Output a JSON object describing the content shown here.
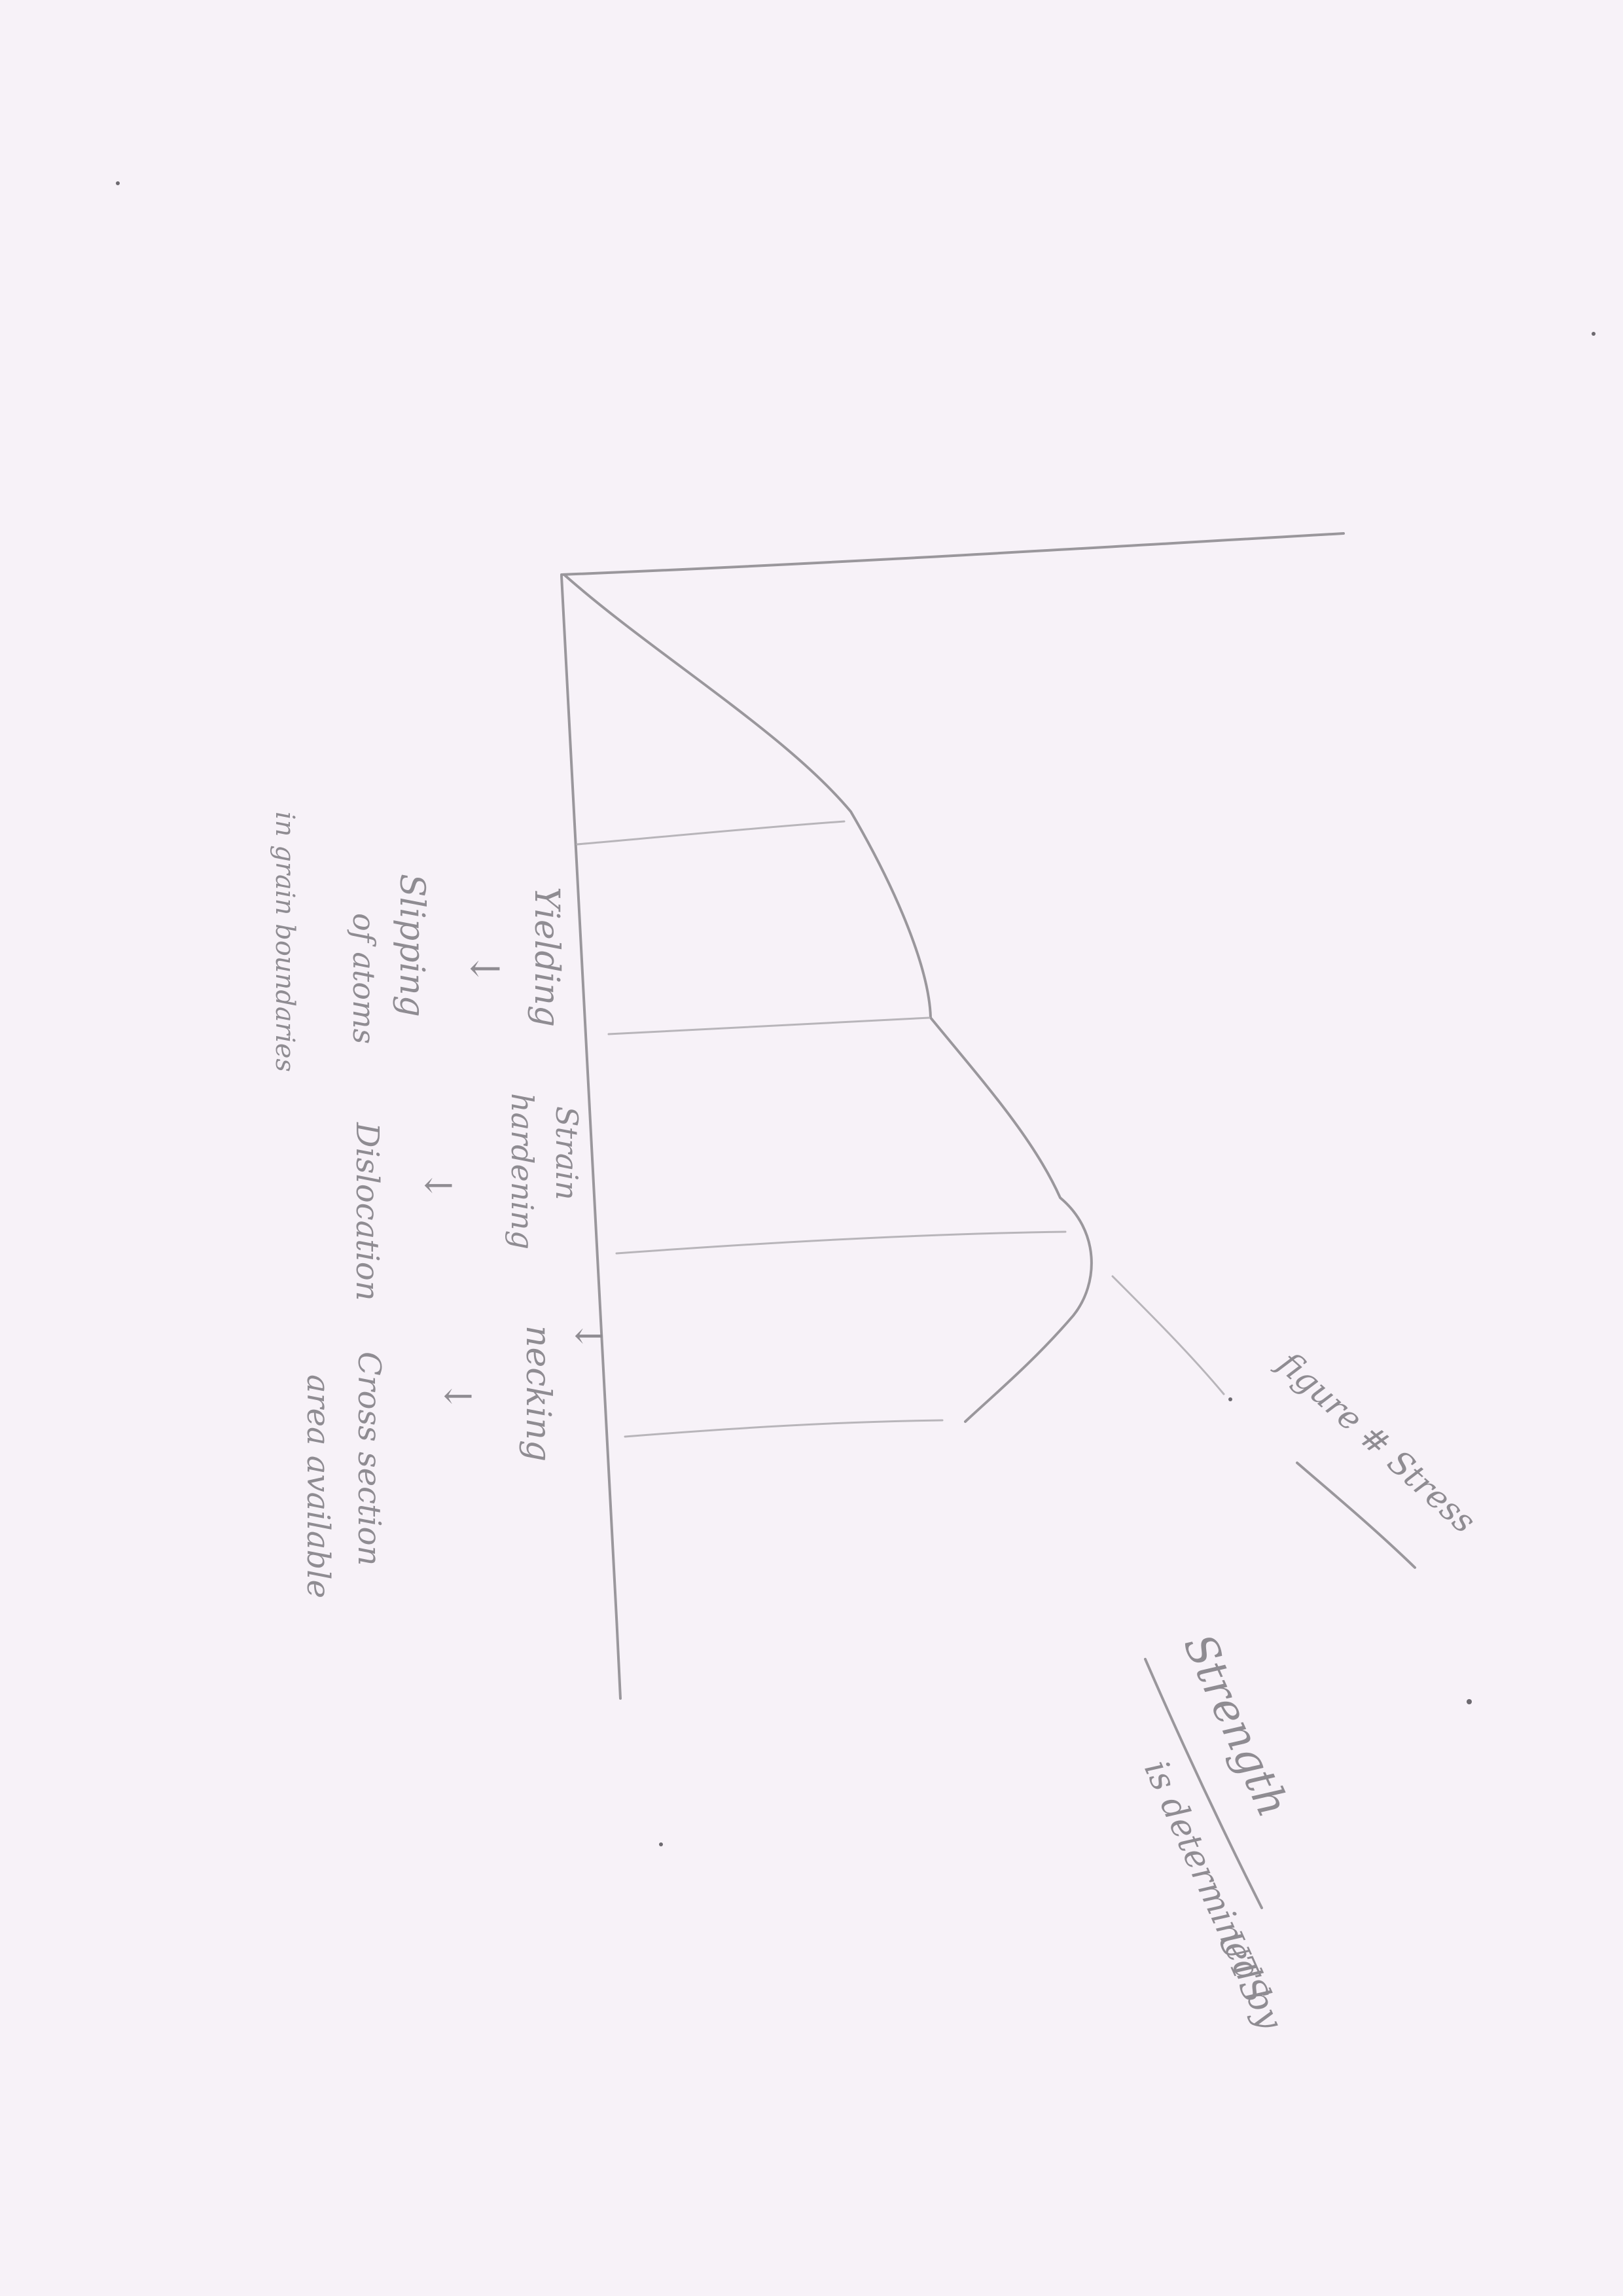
{
  "labels": {
    "yielding": "Yielding",
    "yield_arrow": "↓",
    "slipping_1": "Slipping",
    "slipping_2": "of atoms",
    "slipping_3": "in grain boundaries",
    "strain_1": "Strain",
    "strain_2": "hardening",
    "strain_arrow": "↓",
    "dislocation": "Dislocation",
    "necking_arrow_top": "↓",
    "necking": "necking",
    "necking_arrow": "↓",
    "cross_1": "Cross section",
    "cross_2": "area available",
    "figure": "figure # Stress",
    "strength": "Strength",
    "determined": "is determined by",
    "uts": "UTS"
  }
}
